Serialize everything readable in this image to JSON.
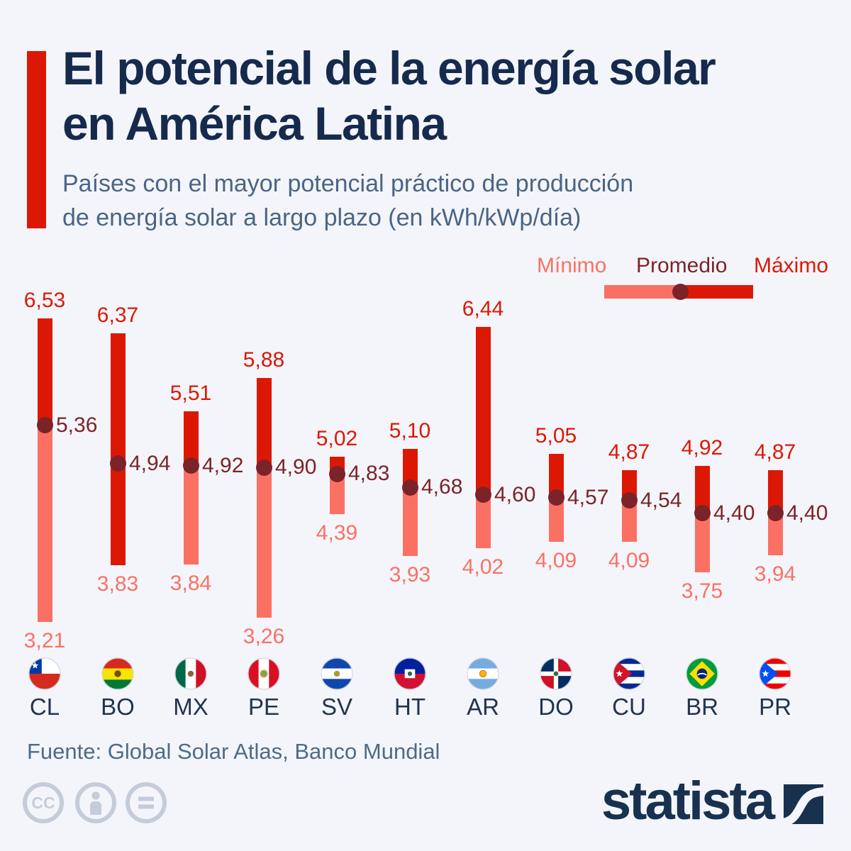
{
  "palette": {
    "background": "#f4f5fa",
    "title_navy": "#152a4d",
    "subtitle_slate": "#4a6585",
    "source_slate": "#4d6b89",
    "brand_navy": "#17314f",
    "license_gray": "#c5ccd9",
    "max_red": "#dc1805",
    "min_salmon": "#fa7164",
    "avg_maroon": "#7c2329",
    "country_code_navy": "#22344e"
  },
  "header": {
    "title_line1": "El potencial de la energía solar",
    "title_line2": "en América Latina",
    "subtitle_line1": "Países con el mayor potencial práctico de producción",
    "subtitle_line2": "de energía solar a largo plazo (en kWh/kWp/día)"
  },
  "legend": {
    "min": "Mínimo",
    "avg": "Promedio",
    "max": "Máximo"
  },
  "chart_data": {
    "type": "bar",
    "subtype": "floating min-max range bars with average dot",
    "title": "El potencial de la energía solar en América Latina",
    "subtitle": "Países con el mayor potencial práctico de producción de energía solar a largo plazo (en kWh/kWp/día)",
    "ylabel": "kWh/kWp/día",
    "ylim": [
      3.21,
      6.53
    ],
    "grid": false,
    "legend_position": "top-right",
    "decimal_separator": ",",
    "categories": [
      "CL",
      "BO",
      "MX",
      "PE",
      "SV",
      "HT",
      "AR",
      "DO",
      "CU",
      "BR",
      "PR"
    ],
    "series": [
      {
        "name": "Mínimo",
        "color": "#fa7164",
        "values": [
          3.21,
          3.83,
          3.84,
          3.26,
          4.39,
          3.93,
          4.02,
          4.09,
          4.09,
          3.75,
          3.94
        ]
      },
      {
        "name": "Promedio",
        "color": "#7c2329",
        "values": [
          5.36,
          4.94,
          4.92,
          4.9,
          4.83,
          4.68,
          4.6,
          4.57,
          4.54,
          4.4,
          4.4
        ]
      },
      {
        "name": "Máximo",
        "color": "#dc1805",
        "values": [
          6.53,
          6.37,
          5.51,
          5.88,
          5.02,
          5.1,
          6.44,
          5.05,
          4.87,
          4.92,
          4.87
        ]
      }
    ],
    "full_red_bars": [
      "BO"
    ],
    "flag_icons": {
      "CL": "chile-flag-icon",
      "BO": "bolivia-flag-icon",
      "MX": "mexico-flag-icon",
      "PE": "peru-flag-icon",
      "SV": "el-salvador-flag-icon",
      "HT": "haiti-flag-icon",
      "AR": "argentina-flag-icon",
      "DO": "dominican-republic-flag-icon",
      "CU": "cuba-flag-icon",
      "BR": "brazil-flag-icon",
      "PR": "puerto-rico-flag-icon"
    }
  },
  "footer": {
    "source": "Fuente: Global Solar Atlas, Banco Mundial",
    "cc_text": "CC",
    "license_icons": [
      "cc-icon",
      "attribution-person-icon",
      "equals-icon"
    ],
    "brand": "statista"
  }
}
